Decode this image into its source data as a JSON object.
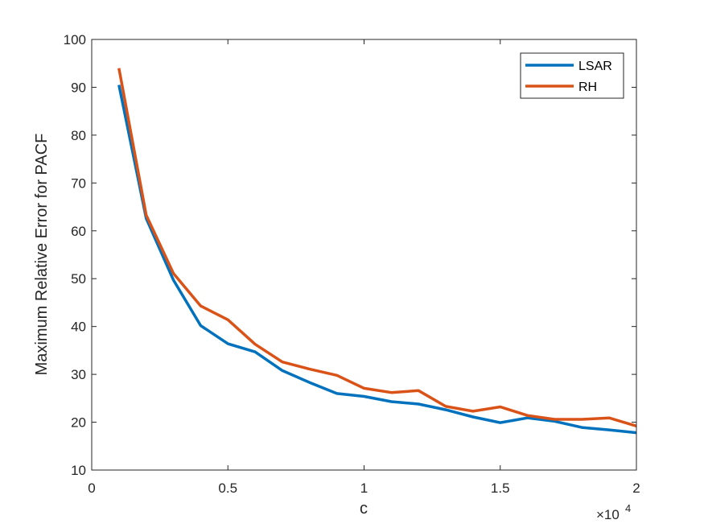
{
  "chart_data": {
    "type": "line",
    "xlabel": "c",
    "ylabel": "Maximum Relative Error for PACF",
    "x_multiplier_label": "×10",
    "x_multiplier_exponent": "4",
    "xlim": [
      0,
      20000
    ],
    "ylim": [
      10,
      100
    ],
    "xticks": [
      0,
      5000,
      10000,
      15000,
      20000
    ],
    "xtick_labels": [
      "0",
      "0.5",
      "1",
      "1.5",
      "2"
    ],
    "yticks": [
      10,
      20,
      30,
      40,
      50,
      60,
      70,
      80,
      90,
      100
    ],
    "ytick_labels": [
      "10",
      "20",
      "30",
      "40",
      "50",
      "60",
      "70",
      "80",
      "90",
      "100"
    ],
    "grid": false,
    "legend_position": "top-right",
    "x": [
      1000,
      2000,
      3000,
      4000,
      5000,
      6000,
      7000,
      8000,
      9000,
      10000,
      11000,
      12000,
      13000,
      14000,
      15000,
      16000,
      17000,
      18000,
      19000,
      20000
    ],
    "series": [
      {
        "name": "LSAR",
        "color": "#0072BD",
        "values": [
          90.5,
          62.6,
          49.7,
          40.2,
          36.4,
          34.7,
          30.8,
          28.3,
          26.0,
          25.4,
          24.3,
          23.8,
          22.6,
          21.1,
          19.9,
          20.9,
          20.2,
          18.9,
          18.4,
          17.8
        ]
      },
      {
        "name": "RH",
        "color": "#D95319",
        "values": [
          94.0,
          63.3,
          51.1,
          44.3,
          41.4,
          36.3,
          32.6,
          31.1,
          29.8,
          27.1,
          26.2,
          26.6,
          23.3,
          22.3,
          23.2,
          21.4,
          20.6,
          20.6,
          20.9,
          19.2
        ]
      }
    ]
  }
}
